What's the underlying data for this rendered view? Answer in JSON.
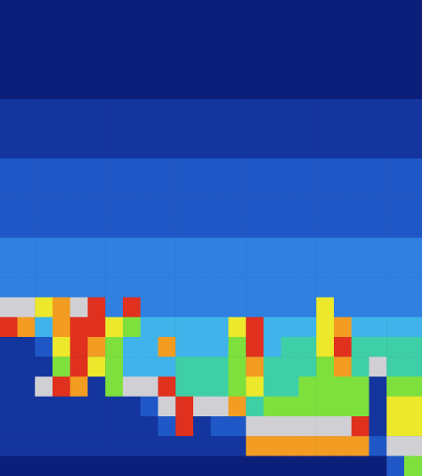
{
  "chart_data": {
    "type": "heatmap",
    "tick_labels": false,
    "zlim": [
      0,
      10
    ],
    "cells": [
      [
        0,
        0,
        0,
        0,
        0,
        0,
        0,
        0,
        0,
        0,
        0,
        0,
        0,
        0,
        0,
        0,
        0,
        0,
        0,
        0,
        0,
        0,
        0,
        0
      ],
      [
        0,
        0,
        0,
        0,
        0,
        0,
        0,
        0,
        0,
        0,
        0,
        0,
        0,
        0,
        0,
        0,
        0,
        0,
        0,
        0,
        0,
        0,
        0,
        0
      ],
      [
        0,
        0,
        0,
        0,
        0,
        0,
        0,
        0,
        0,
        0,
        0,
        0,
        0,
        0,
        0,
        0,
        0,
        0,
        0,
        0,
        0,
        0,
        0,
        0
      ],
      [
        0,
        0,
        0,
        0,
        0,
        0,
        0,
        0,
        0,
        0,
        0,
        0,
        0,
        0,
        0,
        0,
        0,
        0,
        0,
        0,
        0,
        0,
        0,
        0
      ],
      [
        0,
        0,
        0,
        0,
        0,
        0,
        0,
        0,
        0,
        0,
        0,
        0,
        0,
        0,
        0,
        0,
        0,
        0,
        0,
        0,
        0,
        0,
        0,
        0
      ],
      [
        1,
        1,
        1,
        1,
        1,
        1,
        1,
        1,
        1,
        1,
        1,
        1,
        1,
        1,
        1,
        1,
        1,
        1,
        1,
        1,
        1,
        1,
        1,
        1
      ],
      [
        1,
        1,
        1,
        1,
        1,
        1,
        1,
        1,
        1,
        1,
        1,
        1,
        1,
        1,
        1,
        1,
        1,
        1,
        1,
        1,
        1,
        1,
        1,
        1
      ],
      [
        1,
        1,
        1,
        1,
        1,
        1,
        1,
        1,
        1,
        1,
        1,
        1,
        1,
        1,
        1,
        1,
        1,
        1,
        1,
        1,
        1,
        1,
        1,
        1
      ],
      [
        2,
        2,
        2,
        2,
        2,
        2,
        2,
        2,
        2,
        2,
        2,
        2,
        2,
        2,
        2,
        2,
        2,
        2,
        2,
        2,
        2,
        2,
        2,
        2
      ],
      [
        2,
        2,
        2,
        2,
        2,
        2,
        2,
        2,
        2,
        2,
        2,
        2,
        2,
        2,
        2,
        2,
        2,
        2,
        2,
        2,
        2,
        2,
        2,
        2
      ],
      [
        2,
        2,
        2,
        2,
        2,
        2,
        2,
        2,
        2,
        2,
        2,
        2,
        2,
        2,
        2,
        2,
        2,
        2,
        2,
        2,
        2,
        2,
        2,
        2
      ],
      [
        2,
        2,
        2,
        2,
        2,
        2,
        2,
        2,
        2,
        2,
        2,
        2,
        2,
        2,
        2,
        2,
        2,
        2,
        2,
        2,
        2,
        2,
        2,
        2
      ],
      [
        3,
        3,
        3,
        3,
        3,
        3,
        3,
        3,
        3,
        3,
        3,
        3,
        3,
        3,
        3,
        3,
        3,
        3,
        3,
        3,
        3,
        3,
        3,
        3
      ],
      [
        3,
        3,
        3,
        3,
        3,
        3,
        3,
        3,
        3,
        3,
        3,
        3,
        3,
        3,
        3,
        3,
        3,
        3,
        3,
        3,
        3,
        3,
        3,
        3
      ],
      [
        3,
        3,
        3,
        3,
        3,
        3,
        3,
        3,
        3,
        3,
        3,
        3,
        3,
        3,
        3,
        3,
        3,
        3,
        3,
        3,
        3,
        3,
        3,
        3
      ],
      [
        10,
        10,
        7,
        8,
        10,
        9,
        3,
        9,
        3,
        3,
        3,
        3,
        3,
        3,
        3,
        3,
        3,
        3,
        7,
        3,
        3,
        3,
        3,
        3
      ],
      [
        9,
        8,
        4,
        8,
        9,
        9,
        7,
        6,
        4,
        4,
        4,
        4,
        4,
        7,
        9,
        4,
        4,
        4,
        7,
        8,
        4,
        4,
        4,
        4
      ],
      [
        1,
        1,
        2,
        7,
        9,
        8,
        6,
        4,
        4,
        8,
        4,
        4,
        4,
        6,
        9,
        4,
        5,
        5,
        7,
        9,
        5,
        5,
        5,
        5
      ],
      [
        1,
        1,
        1,
        6,
        9,
        7,
        6,
        4,
        4,
        4,
        5,
        5,
        5,
        6,
        8,
        5,
        5,
        5,
        6,
        8,
        5,
        10,
        5,
        5
      ],
      [
        1,
        1,
        10,
        9,
        8,
        1,
        6,
        10,
        10,
        9,
        5,
        5,
        5,
        6,
        7,
        5,
        5,
        6,
        6,
        6,
        6,
        1,
        6,
        6
      ],
      [
        1,
        1,
        1,
        1,
        1,
        1,
        1,
        1,
        2,
        10,
        9,
        10,
        10,
        8,
        5,
        6,
        6,
        6,
        6,
        6,
        6,
        1,
        7,
        7
      ],
      [
        1,
        1,
        1,
        1,
        1,
        1,
        1,
        1,
        1,
        2,
        9,
        1,
        2,
        2,
        10,
        10,
        10,
        10,
        10,
        10,
        9,
        1,
        7,
        7
      ],
      [
        1,
        1,
        1,
        1,
        1,
        1,
        1,
        1,
        1,
        1,
        1,
        1,
        1,
        1,
        8,
        8,
        8,
        8,
        8,
        8,
        8,
        2,
        10,
        10
      ],
      [
        0,
        0,
        0,
        0,
        0,
        0,
        0,
        0,
        0,
        0,
        0,
        0,
        0,
        0,
        0,
        0,
        0,
        0,
        0,
        0,
        0,
        0,
        2,
        6
      ]
    ]
  }
}
